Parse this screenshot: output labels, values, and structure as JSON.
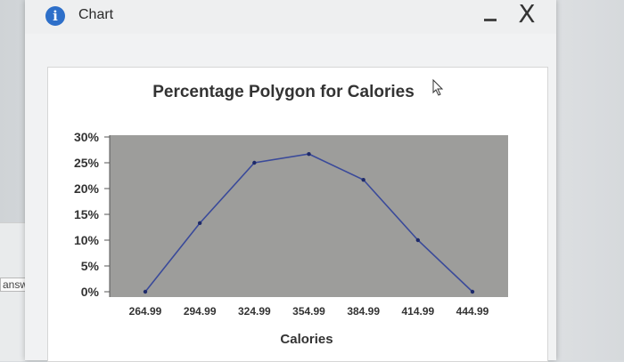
{
  "window": {
    "title": "Chart",
    "info_icon": "info-icon",
    "minimize_icon": "minimize-icon",
    "close_icon": "close-icon",
    "close_glyph": "X"
  },
  "background": {
    "answer_label": "answer."
  },
  "chart_data": {
    "type": "line",
    "title": "Percentage Polygon for Calories",
    "xlabel": "Calories",
    "ylabel": "",
    "x": [
      264.99,
      294.99,
      324.99,
      354.99,
      384.99,
      414.99,
      444.99
    ],
    "x_tick_labels": [
      "264.99",
      "294.99",
      "324.99",
      "354.99",
      "384.99",
      "414.99",
      "444.99"
    ],
    "y_tick_labels": [
      "30%",
      "25%",
      "20%",
      "15%",
      "10%",
      "5%",
      "0%"
    ],
    "y_ticks": [
      30,
      25,
      20,
      15,
      10,
      5,
      0
    ],
    "ylim": [
      0,
      30
    ],
    "series": [
      {
        "values": [
          0,
          13.3,
          25,
          26.7,
          21.7,
          10,
          0
        ]
      }
    ],
    "plot_background": "#9d9d9b",
    "line_color": "#3a4a9a",
    "grid": false
  }
}
